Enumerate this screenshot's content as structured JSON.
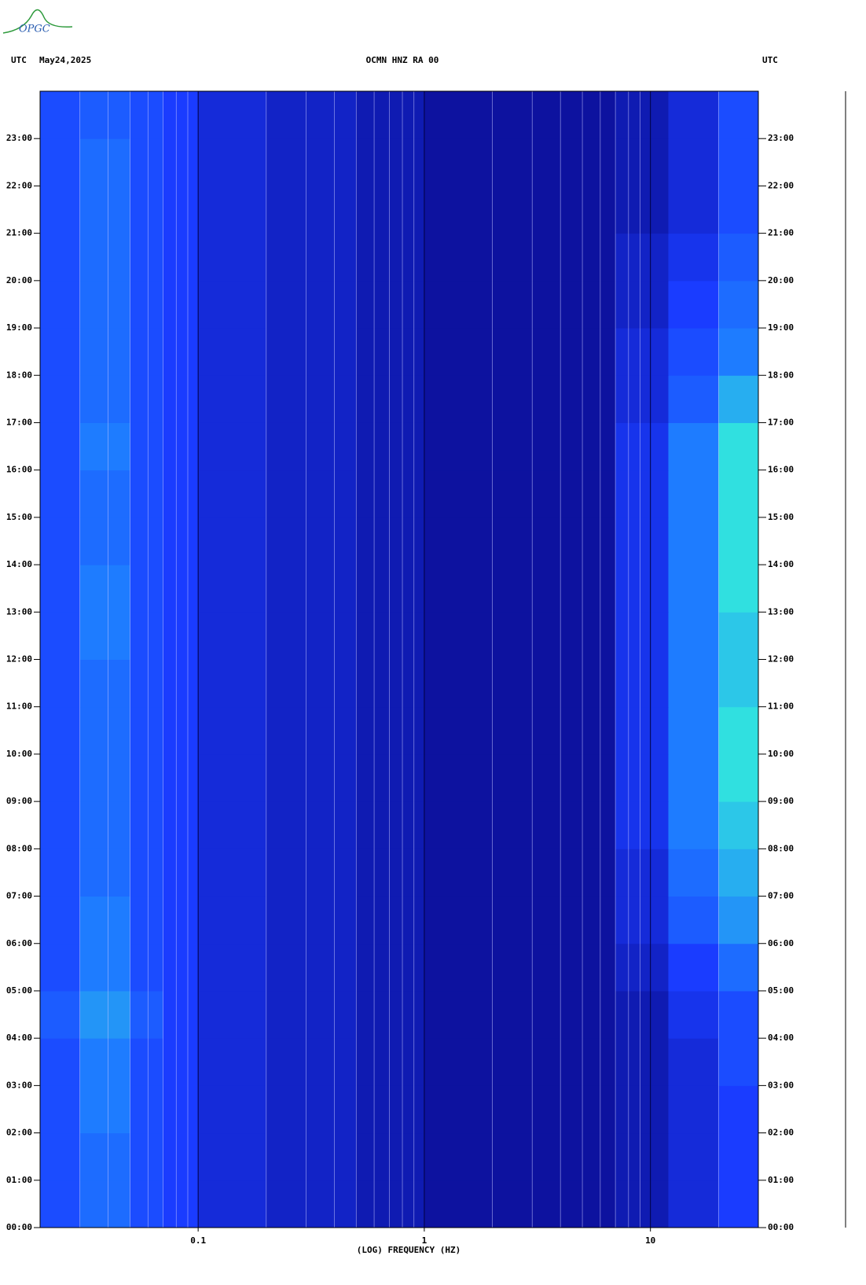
{
  "logo": "OPGC",
  "chart_data": {
    "type": "heatmap",
    "title": "OCMN HNZ RA 00",
    "left_label": "UTC",
    "date": "May24,2025",
    "right_label": "UTC",
    "xlabel": "(LOG) FREQUENCY (HZ)",
    "xscale": "log",
    "xlim": [
      0.02,
      30
    ],
    "xticks": [
      0.1,
      1,
      10
    ],
    "xminorticks": [
      0.03,
      0.04,
      0.05,
      0.06,
      0.07,
      0.08,
      0.09,
      0.2,
      0.3,
      0.4,
      0.5,
      0.6,
      0.7,
      0.8,
      0.9,
      2,
      3,
      4,
      5,
      6,
      7,
      8,
      9,
      20
    ],
    "ylim": [
      0,
      24
    ],
    "yticks": [
      {
        "value": 0,
        "label": "00:00"
      },
      {
        "value": 1,
        "label": "01:00"
      },
      {
        "value": 2,
        "label": "02:00"
      },
      {
        "value": 3,
        "label": "03:00"
      },
      {
        "value": 4,
        "label": "04:00"
      },
      {
        "value": 5,
        "label": "05:00"
      },
      {
        "value": 6,
        "label": "06:00"
      },
      {
        "value": 7,
        "label": "07:00"
      },
      {
        "value": 8,
        "label": "08:00"
      },
      {
        "value": 9,
        "label": "09:00"
      },
      {
        "value": 10,
        "label": "10:00"
      },
      {
        "value": 11,
        "label": "11:00"
      },
      {
        "value": 12,
        "label": "12:00"
      },
      {
        "value": 13,
        "label": "13:00"
      },
      {
        "value": 14,
        "label": "14:00"
      },
      {
        "value": 15,
        "label": "15:00"
      },
      {
        "value": 16,
        "label": "16:00"
      },
      {
        "value": 17,
        "label": "17:00"
      },
      {
        "value": 18,
        "label": "18:00"
      },
      {
        "value": 19,
        "label": "19:00"
      },
      {
        "value": 20,
        "label": "20:00"
      },
      {
        "value": 21,
        "label": "21:00"
      },
      {
        "value": 22,
        "label": "22:00"
      },
      {
        "value": 23,
        "label": "23:00"
      }
    ],
    "xbins": [
      0.02,
      0.03,
      0.05,
      0.07,
      0.1,
      0.2,
      0.5,
      1,
      3,
      7,
      12,
      20,
      30
    ],
    "ybins": [
      0,
      1,
      2,
      3,
      4,
      5,
      6,
      7,
      8,
      9,
      10,
      11,
      12,
      13,
      14,
      15,
      16,
      17,
      18,
      19,
      20,
      21,
      22,
      23,
      24
    ],
    "z": [
      [
        0.35,
        0.45,
        0.35,
        0.3,
        0.2,
        0.15,
        0.1,
        0.05,
        0.05,
        0.1,
        0.2,
        0.3
      ],
      [
        0.35,
        0.45,
        0.35,
        0.3,
        0.2,
        0.15,
        0.1,
        0.05,
        0.05,
        0.1,
        0.2,
        0.3
      ],
      [
        0.35,
        0.5,
        0.35,
        0.3,
        0.2,
        0.15,
        0.1,
        0.05,
        0.05,
        0.1,
        0.2,
        0.3
      ],
      [
        0.35,
        0.5,
        0.35,
        0.3,
        0.2,
        0.15,
        0.1,
        0.05,
        0.05,
        0.1,
        0.2,
        0.35
      ],
      [
        0.4,
        0.55,
        0.4,
        0.3,
        0.2,
        0.15,
        0.1,
        0.05,
        0.05,
        0.1,
        0.25,
        0.35
      ],
      [
        0.35,
        0.5,
        0.35,
        0.3,
        0.2,
        0.15,
        0.1,
        0.05,
        0.05,
        0.15,
        0.3,
        0.45
      ],
      [
        0.35,
        0.5,
        0.35,
        0.3,
        0.2,
        0.15,
        0.1,
        0.05,
        0.05,
        0.2,
        0.4,
        0.55
      ],
      [
        0.35,
        0.45,
        0.35,
        0.3,
        0.2,
        0.15,
        0.1,
        0.05,
        0.05,
        0.2,
        0.45,
        0.6
      ],
      [
        0.35,
        0.45,
        0.35,
        0.3,
        0.2,
        0.15,
        0.1,
        0.05,
        0.05,
        0.25,
        0.5,
        0.65
      ],
      [
        0.35,
        0.45,
        0.35,
        0.3,
        0.2,
        0.15,
        0.1,
        0.05,
        0.05,
        0.25,
        0.5,
        0.7
      ],
      [
        0.35,
        0.45,
        0.35,
        0.3,
        0.2,
        0.15,
        0.1,
        0.05,
        0.05,
        0.25,
        0.5,
        0.7
      ],
      [
        0.35,
        0.45,
        0.35,
        0.3,
        0.2,
        0.15,
        0.1,
        0.05,
        0.05,
        0.25,
        0.5,
        0.65
      ],
      [
        0.35,
        0.5,
        0.35,
        0.3,
        0.2,
        0.15,
        0.1,
        0.05,
        0.05,
        0.25,
        0.5,
        0.65
      ],
      [
        0.35,
        0.5,
        0.35,
        0.3,
        0.2,
        0.15,
        0.1,
        0.05,
        0.05,
        0.25,
        0.5,
        0.7
      ],
      [
        0.35,
        0.45,
        0.35,
        0.3,
        0.2,
        0.15,
        0.1,
        0.05,
        0.05,
        0.25,
        0.5,
        0.7
      ],
      [
        0.35,
        0.45,
        0.35,
        0.3,
        0.2,
        0.15,
        0.1,
        0.05,
        0.05,
        0.25,
        0.5,
        0.7
      ],
      [
        0.35,
        0.5,
        0.35,
        0.3,
        0.2,
        0.15,
        0.1,
        0.05,
        0.05,
        0.25,
        0.5,
        0.7
      ],
      [
        0.35,
        0.45,
        0.35,
        0.3,
        0.2,
        0.15,
        0.1,
        0.05,
        0.05,
        0.2,
        0.4,
        0.6
      ],
      [
        0.35,
        0.45,
        0.35,
        0.3,
        0.2,
        0.15,
        0.1,
        0.05,
        0.05,
        0.2,
        0.35,
        0.5
      ],
      [
        0.35,
        0.45,
        0.35,
        0.3,
        0.2,
        0.15,
        0.1,
        0.05,
        0.05,
        0.15,
        0.3,
        0.45
      ],
      [
        0.35,
        0.45,
        0.35,
        0.3,
        0.2,
        0.15,
        0.1,
        0.05,
        0.05,
        0.15,
        0.25,
        0.4
      ],
      [
        0.35,
        0.45,
        0.35,
        0.3,
        0.2,
        0.15,
        0.1,
        0.05,
        0.05,
        0.1,
        0.2,
        0.35
      ],
      [
        0.35,
        0.45,
        0.35,
        0.3,
        0.2,
        0.15,
        0.1,
        0.05,
        0.05,
        0.1,
        0.2,
        0.35
      ],
      [
        0.35,
        0.4,
        0.35,
        0.3,
        0.2,
        0.15,
        0.1,
        0.05,
        0.05,
        0.1,
        0.2,
        0.35
      ]
    ]
  }
}
